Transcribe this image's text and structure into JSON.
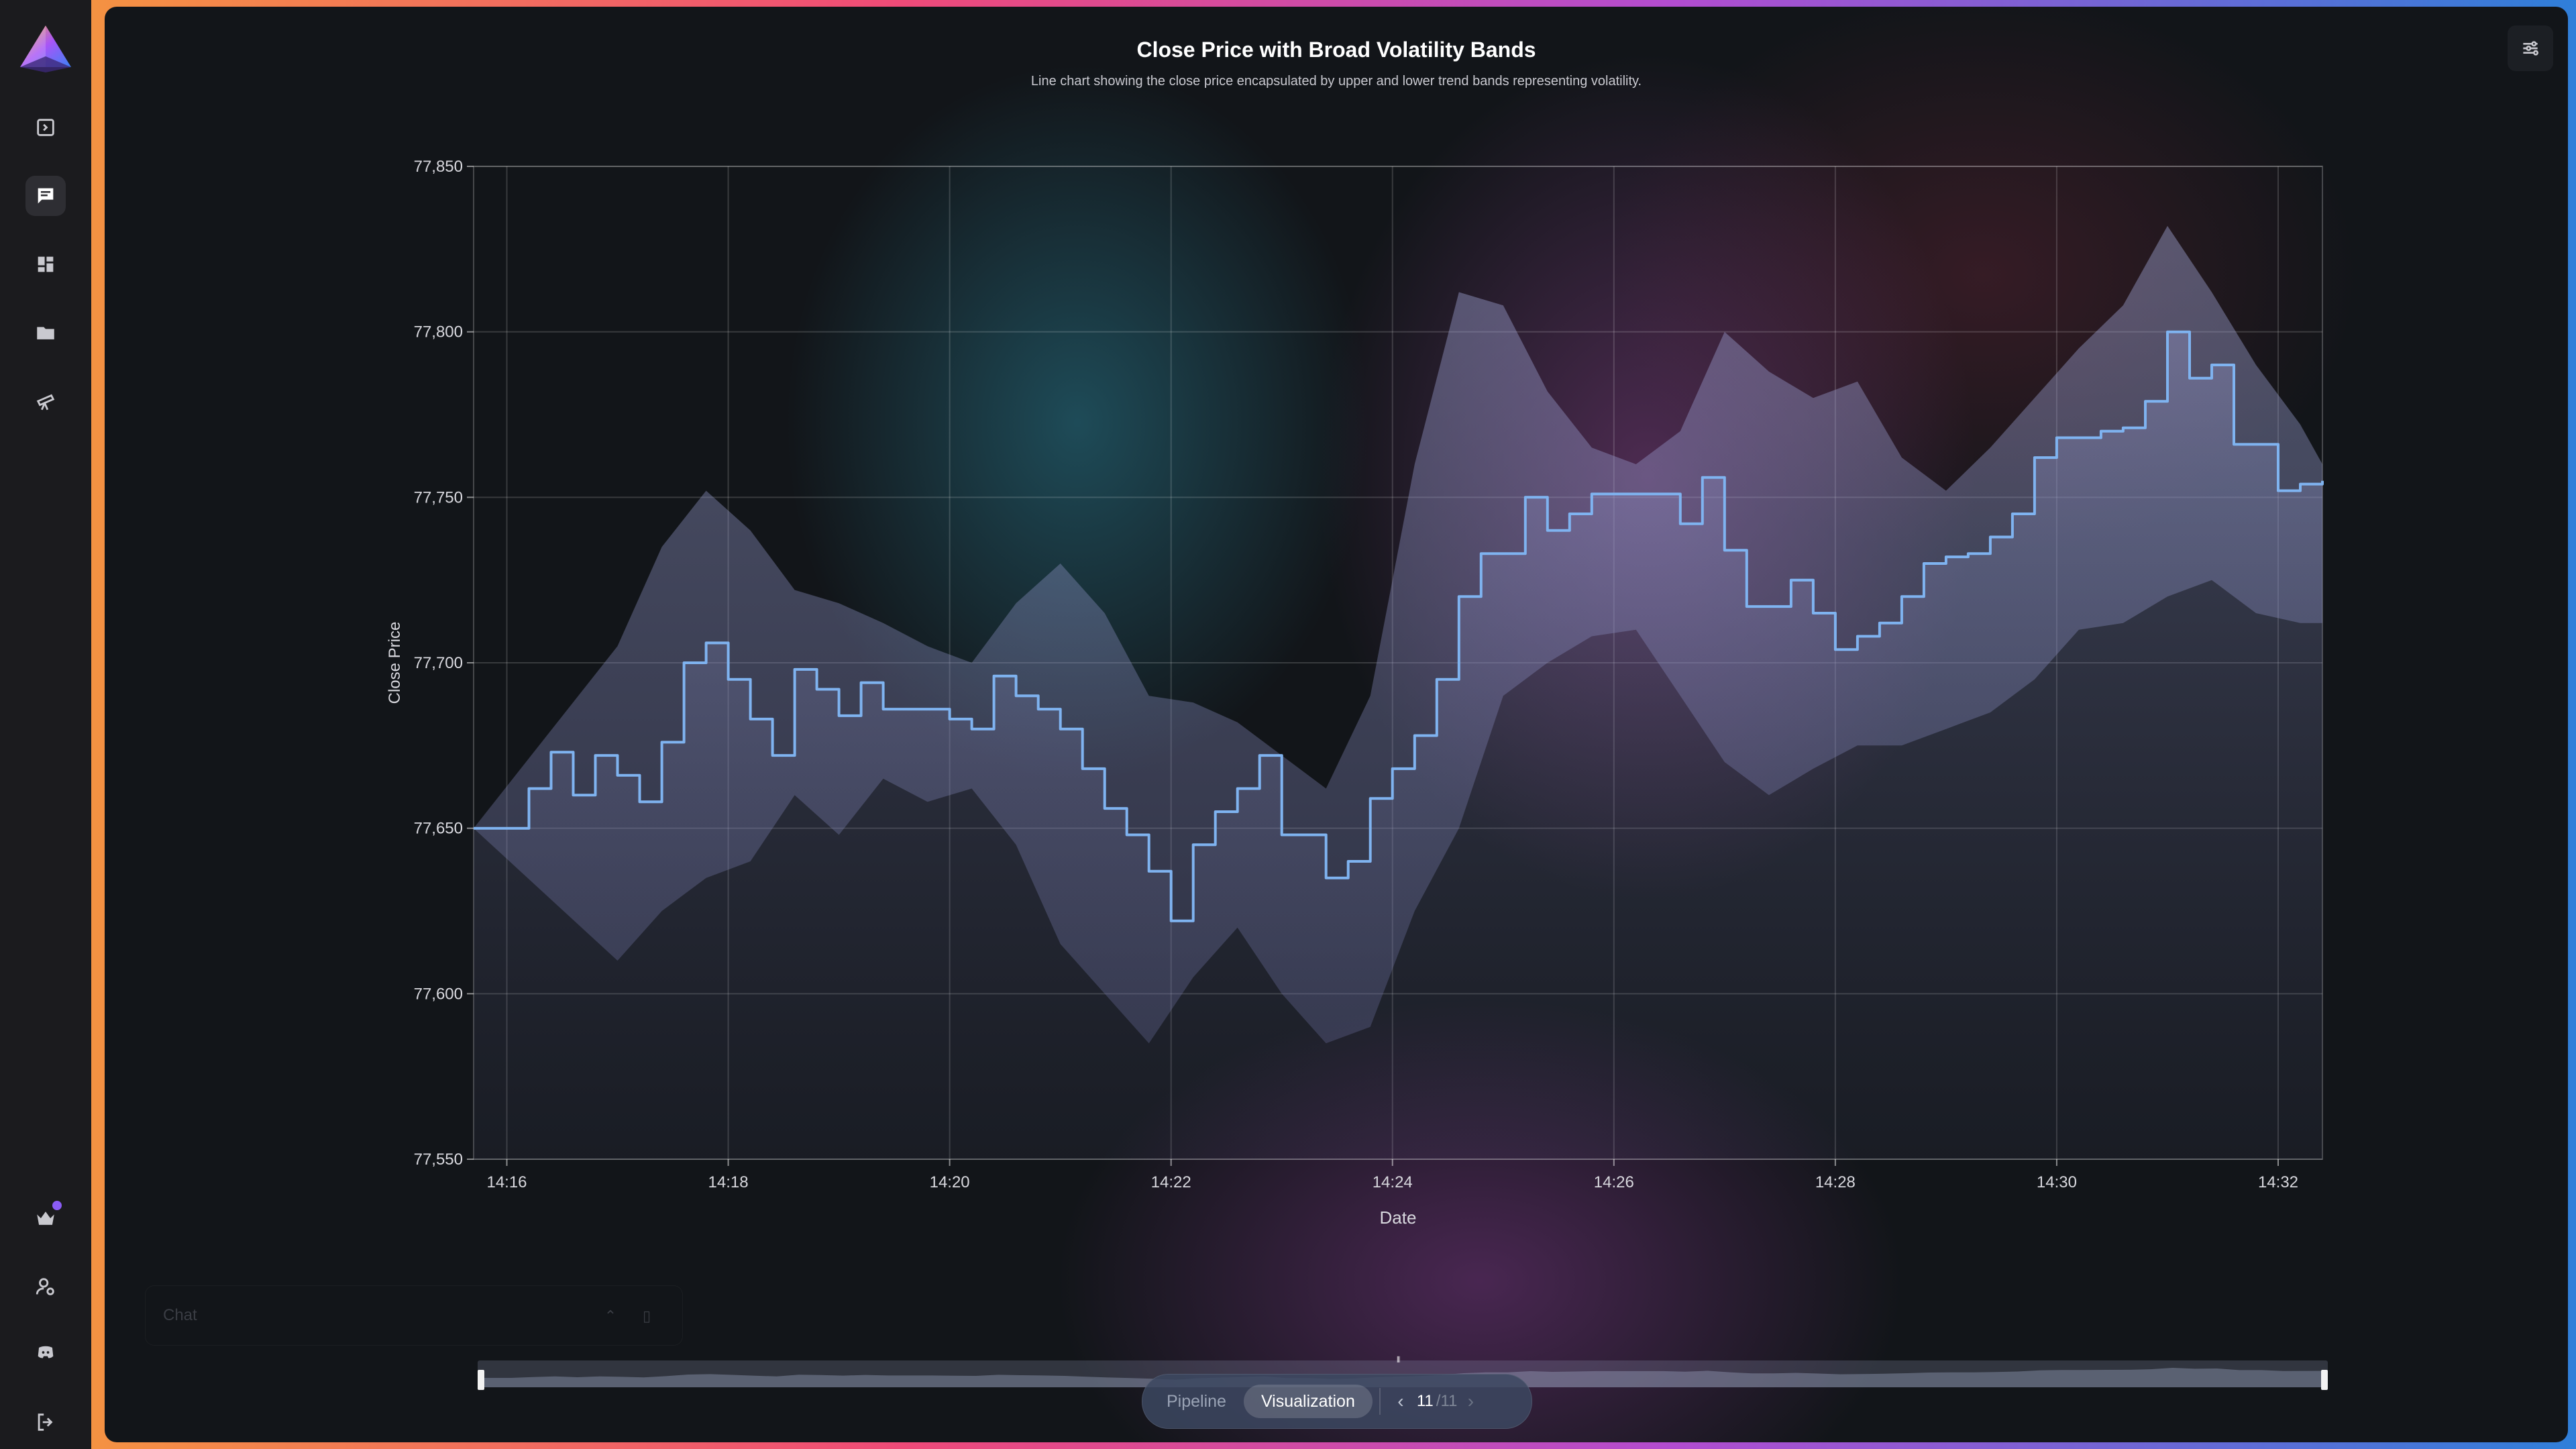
{
  "sidebar": {
    "items": [
      {
        "icon": "sidebar-toggle-icon",
        "active": false
      },
      {
        "icon": "chat-icon",
        "active": true
      },
      {
        "icon": "dashboard-icon",
        "active": false
      },
      {
        "icon": "folder-icon",
        "active": false
      },
      {
        "icon": "telescope-icon",
        "active": false
      }
    ],
    "bottom_items": [
      "crown-icon",
      "user-settings-icon",
      "discord-icon",
      "logout-icon"
    ]
  },
  "chat": {
    "placeholder": "Chat"
  },
  "bottom_nav": {
    "tabs": [
      "Pipeline",
      "Visualization"
    ],
    "active_tab": "Visualization",
    "page_current": "11",
    "page_total": "/11"
  },
  "colors": {
    "line": "#7fb3f0",
    "band_fill": "#8f95c8",
    "accent": "#8b5cf6"
  },
  "chart_data": {
    "type": "line",
    "title": "Close Price with Broad Volatility Bands",
    "subtitle": "Line chart showing the close price encapsulated by upper and lower trend bands representing volatility.",
    "xlabel": "Date",
    "ylabel": "Close Price",
    "ylim": [
      77550,
      77850
    ],
    "yticks": [
      77550,
      77600,
      77650,
      77700,
      77750,
      77800,
      77850
    ],
    "ytick_labels": [
      "77,550",
      "77,600",
      "77,650",
      "77,700",
      "77,750",
      "77,800",
      "77,850"
    ],
    "xlim": [
      "14:15:42",
      "14:32:24"
    ],
    "xticks": [
      "14:16",
      "14:18",
      "14:20",
      "14:22",
      "14:24",
      "14:26",
      "14:28",
      "14:30",
      "14:32"
    ],
    "grid": true,
    "series": [
      {
        "role": "close",
        "x": [
          "14:15:42",
          "14:16:00",
          "14:16:12",
          "14:16:24",
          "14:16:36",
          "14:16:48",
          "14:17:00",
          "14:17:12",
          "14:17:24",
          "14:17:36",
          "14:17:48",
          "14:18:00",
          "14:18:12",
          "14:18:24",
          "14:18:36",
          "14:18:48",
          "14:19:00",
          "14:19:12",
          "14:19:24",
          "14:19:36",
          "14:19:48",
          "14:20:00",
          "14:20:12",
          "14:20:24",
          "14:20:36",
          "14:20:48",
          "14:21:00",
          "14:21:12",
          "14:21:24",
          "14:21:36",
          "14:21:48",
          "14:22:00",
          "14:22:12",
          "14:22:24",
          "14:22:36",
          "14:22:48",
          "14:23:00",
          "14:23:12",
          "14:23:24",
          "14:23:36",
          "14:23:48",
          "14:24:00",
          "14:24:12",
          "14:24:24",
          "14:24:36",
          "14:24:48",
          "14:25:00",
          "14:25:12",
          "14:25:24",
          "14:25:36",
          "14:25:48",
          "14:26:00",
          "14:26:12",
          "14:26:24",
          "14:26:36",
          "14:26:48",
          "14:27:00",
          "14:27:12",
          "14:27:24",
          "14:27:36",
          "14:27:48",
          "14:28:00",
          "14:28:12",
          "14:28:24",
          "14:28:36",
          "14:28:48",
          "14:29:00",
          "14:29:12",
          "14:29:24",
          "14:29:36",
          "14:29:48",
          "14:30:00",
          "14:30:12",
          "14:30:24",
          "14:30:36",
          "14:30:48",
          "14:31:00",
          "14:31:12",
          "14:31:24",
          "14:31:36",
          "14:31:48",
          "14:32:00",
          "14:32:12",
          "14:32:24"
        ],
        "y": [
          77650,
          77650,
          77662,
          77673,
          77660,
          77672,
          77666,
          77658,
          77676,
          77700,
          77706,
          77695,
          77683,
          77672,
          77698,
          77692,
          77684,
          77694,
          77686,
          77686,
          77686,
          77683,
          77680,
          77696,
          77690,
          77686,
          77680,
          77668,
          77656,
          77648,
          77637,
          77622,
          77645,
          77655,
          77662,
          77672,
          77648,
          77648,
          77635,
          77640,
          77659,
          77668,
          77678,
          77695,
          77720,
          77733,
          77733,
          77750,
          77740,
          77745,
          77751,
          77751,
          77751,
          77751,
          77742,
          77756,
          77734,
          77717,
          77717,
          77725,
          77715,
          77704,
          77708,
          77712,
          77720,
          77730,
          77732,
          77733,
          77738,
          77745,
          77762,
          77768,
          77768,
          77770,
          77771,
          77779,
          77800,
          77786,
          77790,
          77766,
          77766,
          77752,
          77754,
          77755
        ]
      },
      {
        "role": "upper_band",
        "x": [
          "14:15:42",
          "14:17:00",
          "14:17:24",
          "14:17:48",
          "14:18:12",
          "14:18:36",
          "14:19:00",
          "14:19:24",
          "14:19:48",
          "14:20:12",
          "14:20:36",
          "14:21:00",
          "14:21:24",
          "14:21:48",
          "14:22:12",
          "14:22:36",
          "14:23:00",
          "14:23:24",
          "14:23:48",
          "14:24:12",
          "14:24:36",
          "14:25:00",
          "14:25:24",
          "14:25:48",
          "14:26:12",
          "14:26:36",
          "14:27:00",
          "14:27:24",
          "14:27:48",
          "14:28:12",
          "14:28:36",
          "14:29:00",
          "14:29:24",
          "14:29:48",
          "14:30:12",
          "14:30:36",
          "14:31:00",
          "14:31:24",
          "14:31:48",
          "14:32:12",
          "14:32:24"
        ],
        "y": [
          77650,
          77705,
          77735,
          77752,
          77740,
          77722,
          77718,
          77712,
          77705,
          77700,
          77718,
          77730,
          77715,
          77690,
          77688,
          77682,
          77672,
          77662,
          77690,
          77760,
          77812,
          77808,
          77782,
          77765,
          77760,
          77770,
          77800,
          77788,
          77780,
          77785,
          77762,
          77752,
          77765,
          77780,
          77795,
          77808,
          77832,
          77812,
          77790,
          77772,
          77760
        ]
      },
      {
        "role": "lower_band",
        "x": [
          "14:15:42",
          "14:17:00",
          "14:17:24",
          "14:17:48",
          "14:18:12",
          "14:18:36",
          "14:19:00",
          "14:19:24",
          "14:19:48",
          "14:20:12",
          "14:20:36",
          "14:21:00",
          "14:21:24",
          "14:21:48",
          "14:22:12",
          "14:22:36",
          "14:23:00",
          "14:23:24",
          "14:23:48",
          "14:24:12",
          "14:24:36",
          "14:25:00",
          "14:25:24",
          "14:25:48",
          "14:26:12",
          "14:26:36",
          "14:27:00",
          "14:27:24",
          "14:27:48",
          "14:28:12",
          "14:28:36",
          "14:29:00",
          "14:29:24",
          "14:29:48",
          "14:30:12",
          "14:30:36",
          "14:31:00",
          "14:31:24",
          "14:31:48",
          "14:32:12",
          "14:32:24"
        ],
        "y": [
          77650,
          77610,
          77625,
          77635,
          77640,
          77660,
          77648,
          77665,
          77658,
          77662,
          77645,
          77615,
          77600,
          77585,
          77605,
          77620,
          77600,
          77585,
          77590,
          77625,
          77650,
          77690,
          77700,
          77708,
          77710,
          77690,
          77670,
          77660,
          77668,
          77675,
          77675,
          77680,
          77685,
          77695,
          77710,
          77712,
          77720,
          77725,
          77715,
          77712,
          77712
        ]
      }
    ]
  }
}
